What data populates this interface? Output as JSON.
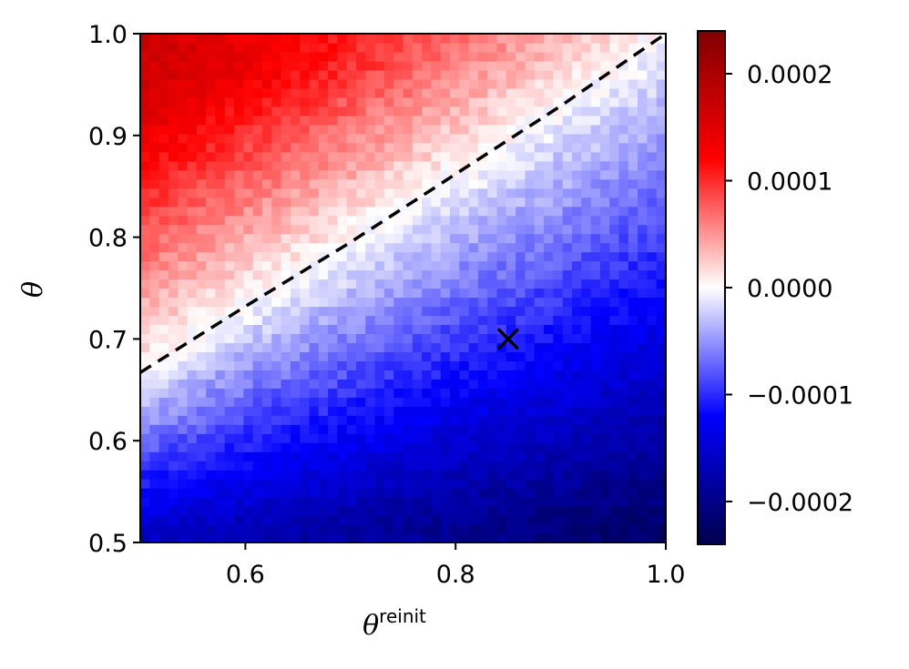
{
  "chart_data": {
    "type": "heatmap",
    "title": "",
    "xlabel": "θ",
    "xlabel_superscript": "reinit",
    "ylabel": "θ",
    "xlim": [
      0.5,
      1.0
    ],
    "ylim": [
      0.5,
      1.0
    ],
    "x_ticks": [
      0.6,
      0.8,
      1.0
    ],
    "x_tick_labels": [
      "0.6",
      "0.8",
      "1.0"
    ],
    "y_ticks": [
      0.5,
      0.6,
      0.7,
      0.8,
      0.9,
      1.0
    ],
    "y_tick_labels": [
      "0.5",
      "0.6",
      "0.7",
      "0.8",
      "0.9",
      "1.0"
    ],
    "grid": false,
    "colormap": "seismic",
    "colormap_colors": [
      "#00004c",
      "#0000ff",
      "#ffffff",
      "#ff0000",
      "#800000"
    ],
    "color_range": [
      -0.00024,
      0.00024
    ],
    "colorbar_ticks": [
      0.0002,
      0.0001,
      0.0,
      -0.0001,
      -0.0002
    ],
    "colorbar_tick_labels": [
      "0.0002",
      "0.0001",
      "0.0000",
      "−0.0001",
      "−0.0002"
    ],
    "corner_values": {
      "x0.5_y1.0": 0.00017,
      "x1.0_y1.0": 0.0,
      "x0.5_y0.5": -0.00016,
      "x1.0_y0.5": -0.00022
    },
    "zero_contour_dashed": {
      "color": "#000000",
      "x": [
        0.5,
        0.6,
        0.7,
        0.8,
        0.9,
        1.0
      ],
      "y": [
        0.667,
        0.732,
        0.795,
        0.862,
        0.929,
        1.0
      ]
    },
    "marker": {
      "symbol": "x",
      "x": 0.85,
      "y": 0.7,
      "color": "#000000"
    }
  }
}
